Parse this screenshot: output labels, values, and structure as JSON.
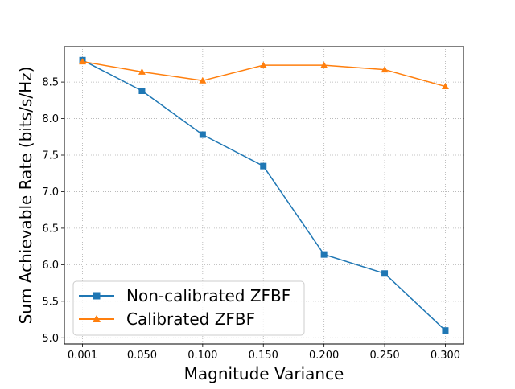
{
  "chart_data": {
    "type": "line",
    "title": "",
    "xlabel": "Magnitude Variance",
    "ylabel": "Sum Achievable Rate (bits/s/Hz)",
    "x": [
      0.001,
      0.05,
      0.1,
      0.15,
      0.2,
      0.25,
      0.3
    ],
    "x_tick_labels": [
      "0.001",
      "0.050",
      "0.100",
      "0.150",
      "0.200",
      "0.250",
      "0.300"
    ],
    "y_ticks": [
      5.0,
      5.5,
      6.0,
      6.5,
      7.0,
      7.5,
      8.0,
      8.5
    ],
    "y_tick_labels": [
      "5.0",
      "5.5",
      "6.0",
      "6.5",
      "7.0",
      "7.5",
      "8.0",
      "8.5"
    ],
    "xlim": [
      -0.01395,
      0.31495
    ],
    "ylim": [
      4.915,
      8.985
    ],
    "grid": true,
    "legend_position": "lower-left",
    "series": [
      {
        "name": "Non-calibrated ZFBF",
        "color": "#1f77b4",
        "marker": "square",
        "values": [
          8.8,
          8.38,
          7.78,
          7.35,
          6.14,
          5.88,
          5.1
        ]
      },
      {
        "name": "Calibrated ZFBF",
        "color": "#ff7f0e",
        "marker": "triangle",
        "values": [
          8.78,
          8.64,
          8.52,
          8.73,
          8.73,
          8.67,
          8.44
        ]
      }
    ]
  }
}
